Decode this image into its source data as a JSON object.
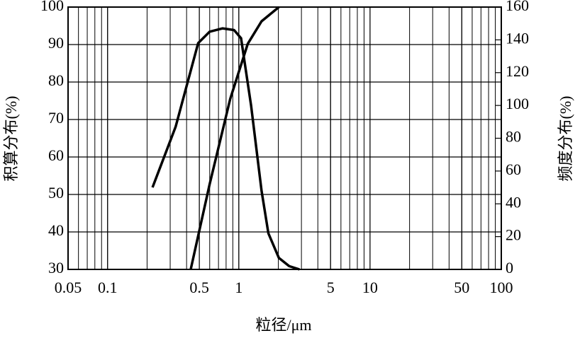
{
  "chart_data": {
    "type": "line",
    "x_label": "粒径/μm",
    "y_label": "积算分布(%)",
    "y2_label": "频度分布(%)",
    "x_scale": "log",
    "xlim": [
      0.05,
      100
    ],
    "xticks": [
      0.05,
      0.1,
      0.5,
      1,
      5,
      10,
      50,
      100
    ],
    "ylim": [
      30,
      100
    ],
    "yticks": [
      30,
      40,
      50,
      60,
      70,
      80,
      90,
      100
    ],
    "y2lim": [
      0,
      160
    ],
    "y2ticks": [
      0,
      20,
      40,
      60,
      80,
      100,
      120,
      140,
      160
    ],
    "grid": true,
    "minor_grid": true,
    "series": [
      {
        "color": "#000000",
        "axis": "y",
        "x": [
          0.43,
          0.6,
          0.86,
          1.17,
          1.49,
          2.02
        ],
        "values": [
          30,
          52.8,
          75.5,
          90.2,
          96.2,
          100
        ]
      },
      {
        "color": "#000000",
        "axis": "y2",
        "x": [
          0.22,
          0.33,
          0.49,
          0.6,
          0.75,
          0.92,
          1.04,
          1.24,
          1.49,
          1.68,
          2.02,
          2.42,
          2.9
        ],
        "values": [
          50,
          87,
          138,
          145,
          147,
          146,
          141,
          100,
          48,
          22,
          7,
          2,
          0
        ]
      }
    ]
  }
}
